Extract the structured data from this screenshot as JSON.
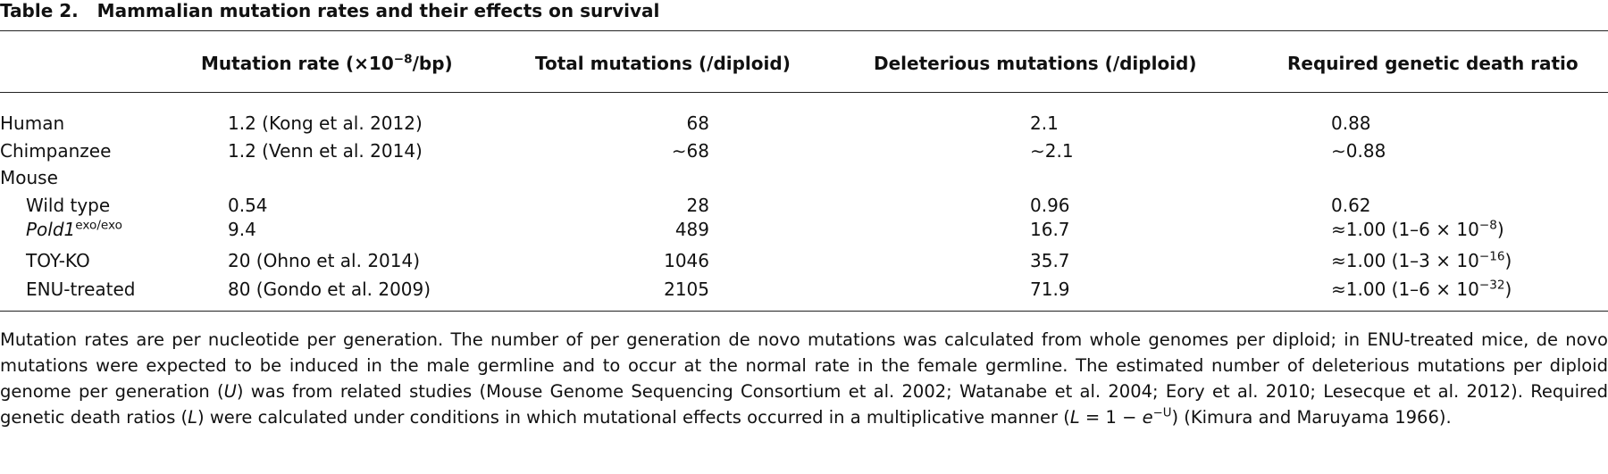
{
  "title": {
    "label": "Table 2.",
    "text": "Mammalian mutation rates and their effects on survival"
  },
  "table": {
    "columns": [
      [
        {
          "text": "Mutation rate (×10"
        },
        {
          "text": "−8",
          "style": "sup"
        },
        {
          "text": "/bp)"
        }
      ],
      "Total mutations (/diploid)",
      "Deleterious mutations (/diploid)",
      "Required genetic death ratio"
    ],
    "rows": [
      {
        "name": "Human",
        "cells": [
          "1.2 (Kong et al. 2012)",
          "68",
          "2.1",
          "0.88"
        ]
      },
      {
        "name": "Chimpanzee",
        "cells": [
          "1.2 (Venn et al. 2014)",
          "∼68",
          "∼2.1",
          "∼0.88"
        ]
      },
      {
        "name": "Mouse"
      },
      {
        "name": "Wild type",
        "indent": true,
        "cells": [
          "0.54",
          "28",
          "0.96",
          "0.62"
        ]
      },
      {
        "name": [
          {
            "text": "Pold1",
            "style": "italic"
          },
          {
            "text": "exo/exo",
            "style": "sup"
          }
        ],
        "indent": true,
        "cells": [
          "9.4",
          "489",
          "16.7",
          [
            {
              "text": "≈1.00 (1–6 × 10"
            },
            {
              "text": "−8",
              "style": "sup"
            },
            {
              "text": ")"
            }
          ]
        ]
      },
      {
        "name": "TOY-KO",
        "indent": true,
        "cells": [
          "20 (Ohno et al. 2014)",
          "1046",
          "35.7",
          [
            {
              "text": "≈1.00 (1–3 × 10"
            },
            {
              "text": "−16",
              "style": "sup"
            },
            {
              "text": ")"
            }
          ]
        ]
      },
      {
        "name": "ENU-treated",
        "indent": true,
        "cells": [
          "80 (Gondo et al. 2009)",
          "2105",
          "71.9",
          [
            {
              "text": "≈1.00 (1–6 × 10"
            },
            {
              "text": "−32",
              "style": "sup"
            },
            {
              "text": ")"
            }
          ]
        ]
      }
    ]
  },
  "footnote": [
    {
      "text": "Mutation rates are per nucleotide per generation. The number of per generation de novo mutations was calculated from whole genomes per diploid; in ENU-treated mice, de novo mutations were expected to be induced in the male germline and to occur at the normal rate in the female germline. The estimated number of deleterious mutations per diploid genome per generation ("
    },
    {
      "text": "U",
      "style": "italic"
    },
    {
      "text": ") was from related studies (Mouse Genome Sequencing Consortium et al. 2002; Watanabe et al. 2004; Eory et al. 2010; Lesecque et al. 2012). Required genetic death ratios ("
    },
    {
      "text": "L",
      "style": "italic"
    },
    {
      "text": ") were calculated under conditions in which mutational effects occurred in a multiplicative manner ("
    },
    {
      "text": "L",
      "style": "italic"
    },
    {
      "text": " = 1 − "
    },
    {
      "text": "e",
      "style": "italic"
    },
    {
      "text": "−U",
      "style": "sup"
    },
    {
      "text": ") (Kimura and Maruyama 1966)."
    }
  ]
}
